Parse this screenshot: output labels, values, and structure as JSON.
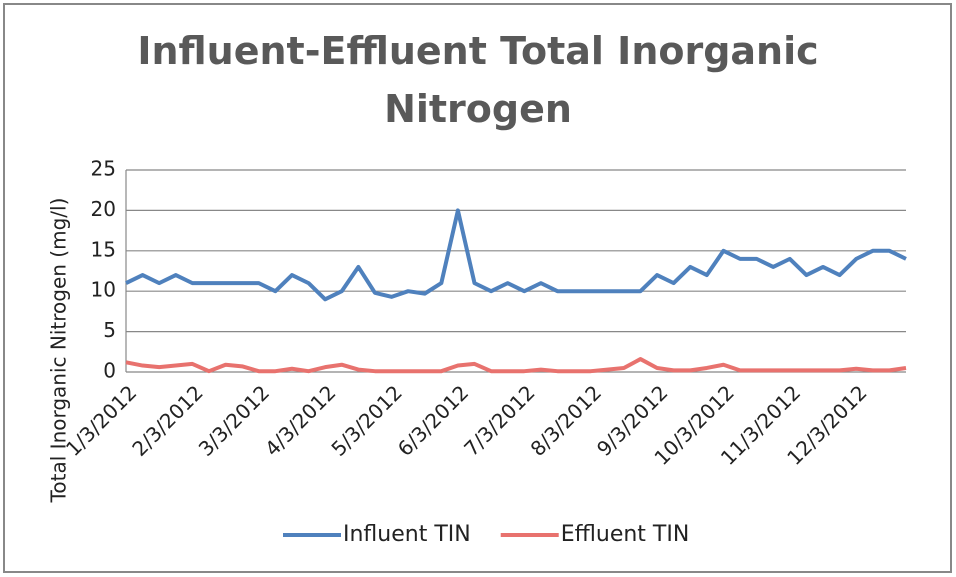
{
  "chart_data": {
    "type": "line",
    "title": "Influent-Effluent Total Inorganic Nitrogen",
    "y_label": "Total Inorganic Nitrogen (mg/l)",
    "categories": [
      "1/3/2012",
      null,
      null,
      null,
      "2/3/2012",
      null,
      null,
      null,
      "3/3/2012",
      null,
      null,
      null,
      "4/3/2012",
      null,
      null,
      null,
      "5/3/2012",
      null,
      null,
      null,
      "6/3/2012",
      null,
      null,
      null,
      "7/3/2012",
      null,
      null,
      null,
      "8/3/2012",
      null,
      null,
      null,
      "9/3/2012",
      null,
      null,
      null,
      "10/3/2012",
      null,
      null,
      null,
      "11/3/2012",
      null,
      null,
      null,
      "12/3/2012",
      null,
      null,
      null
    ],
    "series": [
      {
        "name": "Influent TIN",
        "color": "#4f81bd",
        "values": [
          11,
          12,
          11,
          12,
          11,
          11,
          11,
          11,
          11,
          10,
          12,
          11,
          9,
          10,
          13,
          9.8,
          9.3,
          10,
          9.7,
          11,
          20,
          11,
          10,
          11,
          10,
          11,
          10,
          10,
          10,
          10,
          10,
          10,
          12,
          11,
          13,
          12,
          15,
          14,
          14,
          13,
          14,
          12,
          13,
          12,
          14,
          15,
          15,
          14
        ]
      },
      {
        "name": "Effluent TIN",
        "color": "#e8726e",
        "values": [
          1.2,
          0.8,
          0.6,
          0.8,
          1,
          0.1,
          0.9,
          0.7,
          0.1,
          0.1,
          0.4,
          0.1,
          0.6,
          0.9,
          0.3,
          0.1,
          0.1,
          0.1,
          0.1,
          0.1,
          0.8,
          1,
          0.1,
          0.1,
          0.1,
          0.3,
          0.1,
          0.1,
          0.1,
          0.3,
          0.5,
          1.6,
          0.5,
          0.2,
          0.2,
          0.5,
          0.9,
          0.2,
          0.2,
          0.2,
          0.2,
          0.2,
          0.2,
          0.2,
          0.4,
          0.2,
          0.2,
          0.5
        ]
      }
    ],
    "ylim": [
      0,
      25
    ],
    "yticks": [
      0,
      5,
      10,
      15,
      20,
      25
    ],
    "grid": true,
    "legend": "bottom"
  }
}
